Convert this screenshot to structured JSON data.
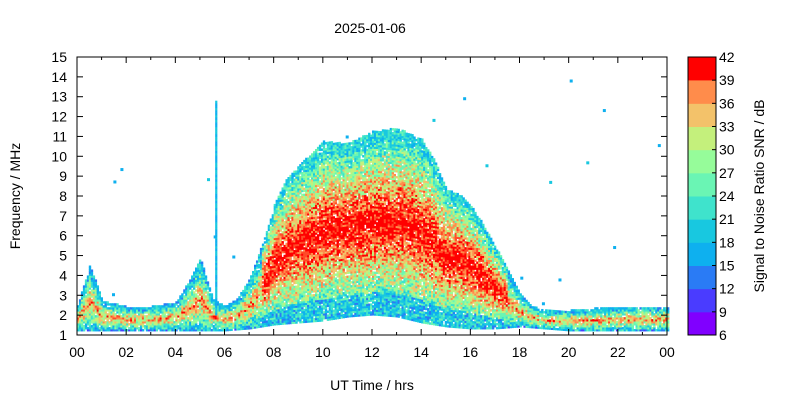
{
  "chart_data": {
    "type": "heatmap",
    "title": "2025-01-06",
    "xlabel": "UT Time / hrs",
    "ylabel": "Frequency / MHz",
    "colorbar_label": "Signal to Noise Ratio SNR / dB",
    "xlim": [
      0,
      24
    ],
    "ylim": [
      1,
      15
    ],
    "x_tick_labels": [
      "00",
      "02",
      "04",
      "06",
      "08",
      "10",
      "12",
      "14",
      "16",
      "18",
      "20",
      "22",
      "00"
    ],
    "y_tick_labels": [
      "1",
      "2",
      "3",
      "4",
      "5",
      "6",
      "7",
      "8",
      "9",
      "10",
      "11",
      "12",
      "13",
      "14",
      "15"
    ],
    "colorbar": {
      "range": [
        6,
        42
      ],
      "tick_labels": [
        "6",
        "9",
        "12",
        "15",
        "18",
        "21",
        "24",
        "27",
        "30",
        "33",
        "36",
        "39",
        "42"
      ],
      "colors": [
        "#8000ff",
        "#4a3cff",
        "#2a7bf5",
        "#0eb0ef",
        "#18c8e0",
        "#3fe3cc",
        "#6af5b4",
        "#96fc9a",
        "#c4f07c",
        "#f3c26a",
        "#ff8c4b",
        "#ff4b28",
        "#ff0000"
      ]
    },
    "noise_floor_mhz": [
      [
        0,
        1.2
      ],
      [
        1,
        1.2
      ],
      [
        2,
        1.2
      ],
      [
        3,
        1.2
      ],
      [
        4,
        1.2
      ],
      [
        5,
        1.2
      ],
      [
        6,
        1.2
      ],
      [
        7,
        1.3
      ],
      [
        8,
        1.5
      ],
      [
        9,
        1.6
      ],
      [
        10,
        1.7
      ],
      [
        11,
        1.9
      ],
      [
        12,
        2.0
      ],
      [
        13,
        1.9
      ],
      [
        14,
        1.6
      ],
      [
        15,
        1.4
      ],
      [
        16,
        1.3
      ],
      [
        17,
        1.3
      ],
      [
        18,
        1.4
      ],
      [
        19,
        1.3
      ],
      [
        20,
        1.2
      ],
      [
        21,
        1.2
      ],
      [
        22,
        1.2
      ],
      [
        23,
        1.2
      ],
      [
        24,
        1.2
      ]
    ],
    "max_echo_frequency_mhz": [
      [
        0,
        2.5
      ],
      [
        0.5,
        4.5
      ],
      [
        1,
        2.7
      ],
      [
        2,
        2.4
      ],
      [
        3,
        2.4
      ],
      [
        4,
        2.6
      ],
      [
        4.5,
        3.6
      ],
      [
        5,
        4.8
      ],
      [
        5.5,
        2.8
      ],
      [
        6,
        2.4
      ],
      [
        6.5,
        2.8
      ],
      [
        7,
        3.8
      ],
      [
        7.5,
        5.5
      ],
      [
        8,
        7.5
      ],
      [
        8.5,
        8.8
      ],
      [
        9,
        9.5
      ],
      [
        10,
        10.7
      ],
      [
        11,
        10.6
      ],
      [
        12,
        11.2
      ],
      [
        13,
        11.4
      ],
      [
        14,
        10.8
      ],
      [
        14.5,
        9.8
      ],
      [
        15,
        8.3
      ],
      [
        15.5,
        8.1
      ],
      [
        16,
        7.5
      ],
      [
        16.5,
        6.5
      ],
      [
        17,
        5.4
      ],
      [
        17.5,
        4.2
      ],
      [
        18,
        3.0
      ],
      [
        18.5,
        2.4
      ],
      [
        19,
        2.2
      ],
      [
        20,
        2.2
      ],
      [
        21,
        2.3
      ],
      [
        22,
        2.4
      ],
      [
        23,
        2.4
      ],
      [
        24,
        2.4
      ]
    ]
  }
}
